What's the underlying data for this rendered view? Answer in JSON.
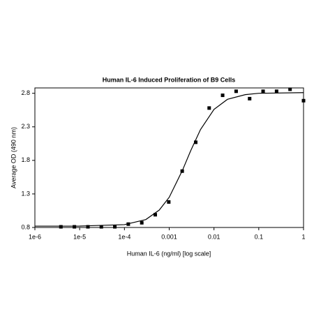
{
  "chart_data": {
    "type": "scatter",
    "title": "Human IL-6 Induced Proliferation of B9 Cells",
    "x_label": "Human IL-6 (ng/ml) [log scale]",
    "y_label": "Average OD (490 nm)",
    "xscale": "log",
    "series": [
      {
        "type": "scatter",
        "color": "#000000",
        "x": [
          1,
          0.5,
          0.25,
          0.125,
          0.0625,
          0.03125,
          0.0156,
          0.00781,
          0.00391,
          0.00195,
          0.000977,
          0.000488,
          0.000244,
          0.000122,
          6.1e-05,
          3.05e-05,
          1.53e-05,
          7.63e-06,
          3.81e-06
        ],
        "values": [
          2.69,
          2.86,
          2.83,
          2.83,
          2.72,
          2.83,
          2.77,
          2.58,
          2.07,
          1.64,
          1.18,
          0.99,
          0.87,
          0.85,
          0.81,
          0.81,
          0.81,
          0.81,
          0.81
        ]
      },
      {
        "type": "line",
        "color": "#000000",
        "x": [
          1e-06,
          1e-05,
          0.0001,
          0.0003,
          0.0006,
          0.001,
          0.002,
          0.003,
          0.005,
          0.01,
          0.02,
          0.05,
          0.1,
          1
        ],
        "values": [
          0.82,
          0.821,
          0.842,
          0.918,
          1.06,
          1.25,
          1.66,
          1.94,
          2.26,
          2.56,
          2.71,
          2.78,
          2.8,
          2.81
        ]
      }
    ],
    "xlim": [
      1e-06,
      1
    ],
    "ylim": [
      0.8,
      2.88
    ],
    "xticks": [
      {
        "value": 1e-06,
        "label": "1e-6"
      },
      {
        "value": 1e-05,
        "label": "1e-5"
      },
      {
        "value": 0.0001,
        "label": "1e-4"
      },
      0.001,
      0.01,
      0.1,
      1
    ],
    "yticks": [
      0.8,
      1.3,
      1.8,
      2.3,
      2.8
    ]
  }
}
